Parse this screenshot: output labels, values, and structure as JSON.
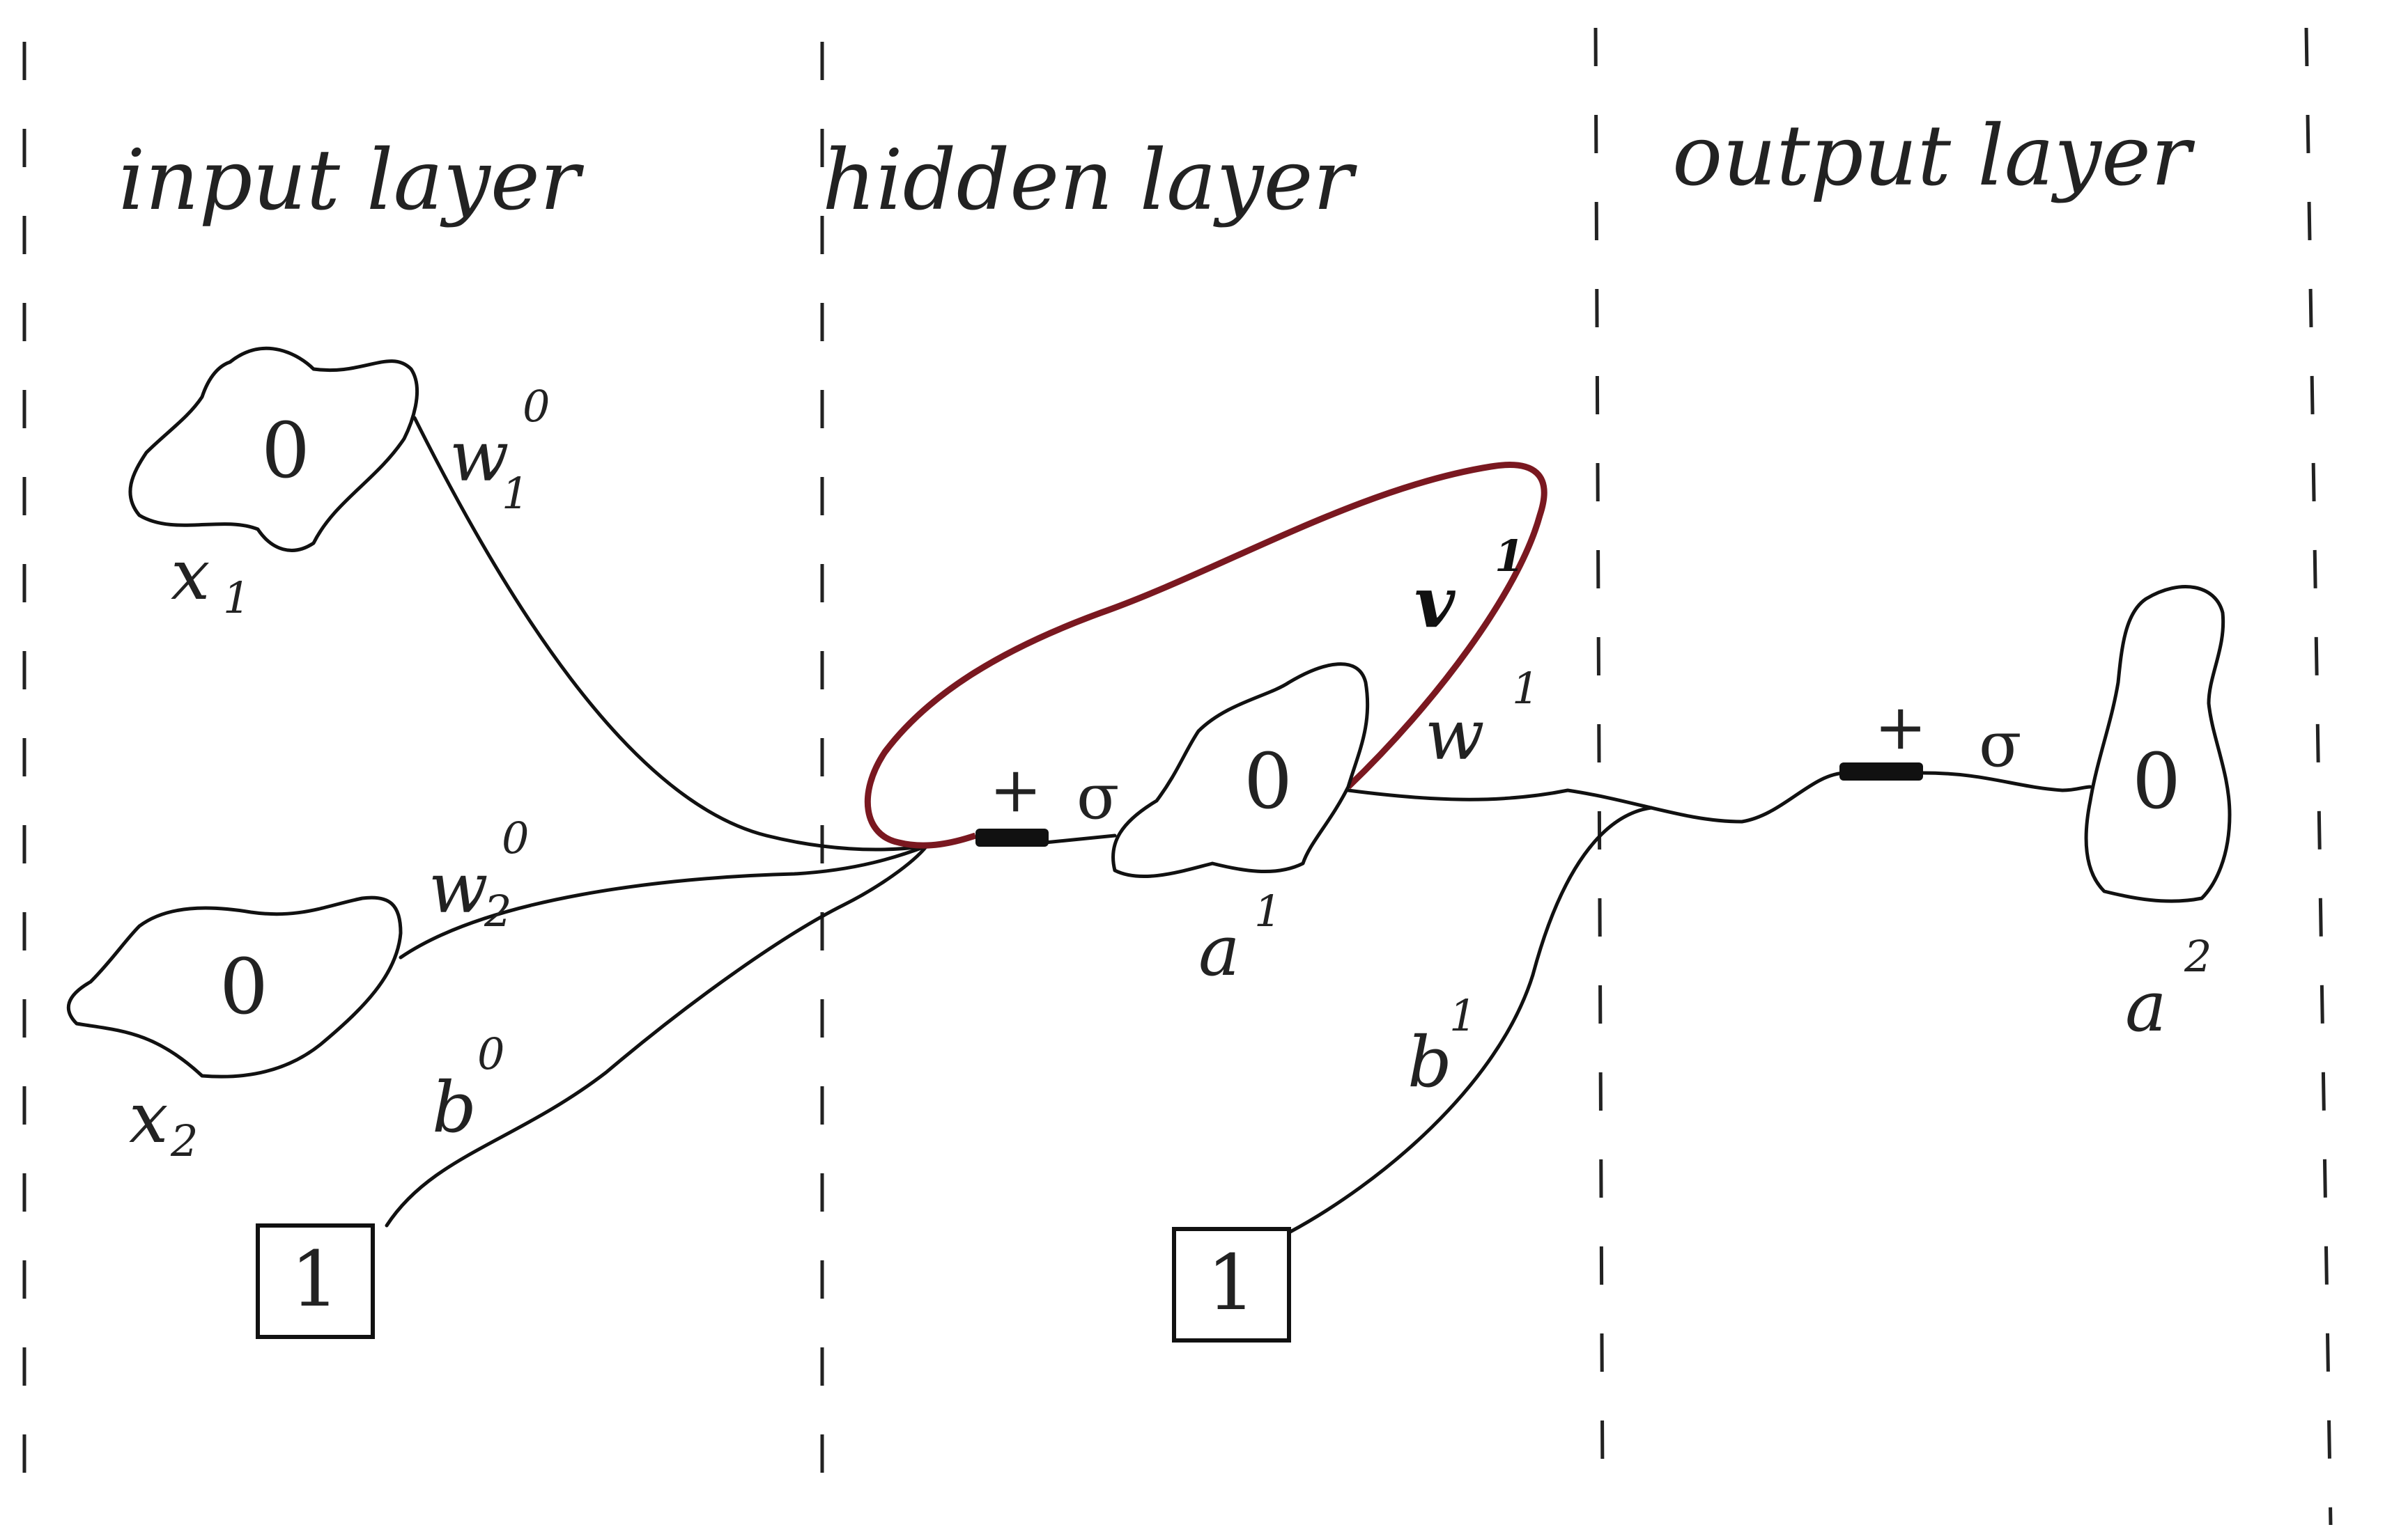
{
  "layers": {
    "input": "input layer",
    "hidden": "hidden layer",
    "output": "output layer"
  },
  "nodes": {
    "x1": {
      "value": "0",
      "name": "x",
      "subscript": "1"
    },
    "x2": {
      "value": "0",
      "name": "x",
      "subscript": "2"
    },
    "bias0": {
      "value": "1"
    },
    "hidden_a1": {
      "value": "0",
      "name": "a",
      "superscript": "1"
    },
    "bias1": {
      "value": "1"
    },
    "output_a2": {
      "value": "0",
      "name": "a",
      "superscript": "2"
    }
  },
  "weights": {
    "w1_0": {
      "name": "w",
      "subscript": "1",
      "superscript": "0"
    },
    "w2_0": {
      "name": "w",
      "subscript": "2",
      "superscript": "0"
    },
    "b0": {
      "name": "b",
      "superscript": "0"
    },
    "w1": {
      "name": "w",
      "superscript": "1"
    },
    "v1": {
      "name": "v",
      "superscript": "1"
    },
    "b1": {
      "name": "b",
      "superscript": "1"
    }
  },
  "operators": {
    "hidden_sum": "+",
    "hidden_activation": "σ",
    "output_sum": "+",
    "output_activation": "σ"
  },
  "colors": {
    "ink": "#111111",
    "recurrent_loop": "#7a1820"
  }
}
